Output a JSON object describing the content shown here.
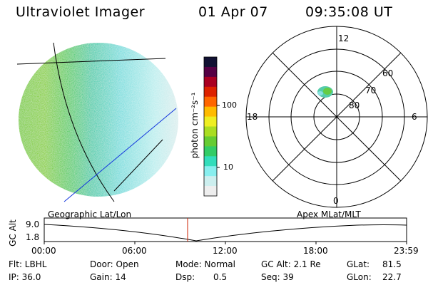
{
  "header": {
    "instrument": "Ultraviolet Imager",
    "date": "01 Apr 07",
    "time": "09:35:08 UT"
  },
  "colorbar": {
    "unit_label": "photon cm⁻²s⁻¹",
    "ticks": [
      "100",
      "10"
    ],
    "colors": [
      "#111133",
      "#550044",
      "#aa0022",
      "#dd2200",
      "#ff6600",
      "#ffbb00",
      "#eeee22",
      "#aadd22",
      "#66cc33",
      "#33cc66",
      "#33ddbb",
      "#88eeee",
      "#cceeee",
      "#eeeeee"
    ]
  },
  "polar_plot": {
    "mlt_labels": {
      "top": "12",
      "left": "18",
      "right": "6",
      "bottom": "0"
    },
    "lat_labels": [
      "60",
      "70",
      "80"
    ]
  },
  "altitude_strip": {
    "y_axis_label": "GC Alt",
    "y_ticks": [
      "9.0",
      "1.8"
    ],
    "left_title": "Geographic Lat/Lon",
    "right_title": "Apex  MLat/MLT",
    "x_ticks": [
      "00:00",
      "06:00",
      "12:00",
      "18:00",
      "23:59"
    ]
  },
  "info": {
    "flt": "Flt: LBHL",
    "ip": "IP: 36.0",
    "door": "Door: Open",
    "gain": "Gain: 14",
    "mode": "Mode: Normal",
    "dsp_label": "Dsp:",
    "dsp_value": "0.5",
    "gcalt": "GC Alt: 2.1 Re",
    "seq": "Seq: 39",
    "glat_label": "GLat:",
    "glat_value": "81.5",
    "glon_label": "GLon:",
    "glon_value": "22.7"
  }
}
